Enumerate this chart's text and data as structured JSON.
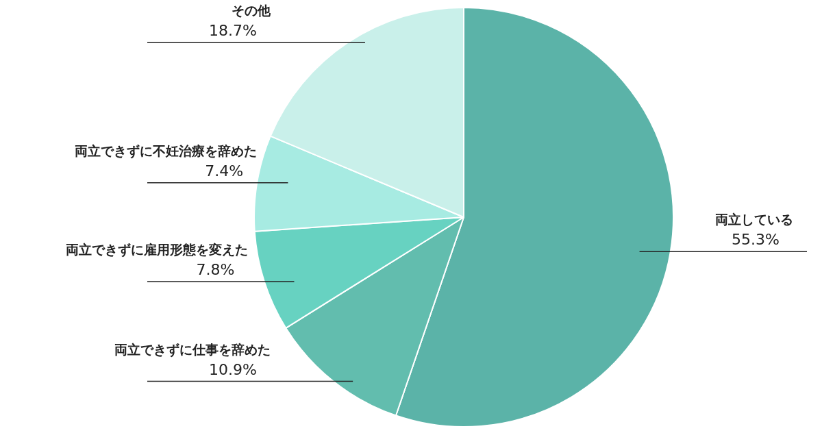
{
  "chart_data": {
    "type": "pie",
    "categories": [
      "両立している",
      "両立できずに仕事を辞めた",
      "両立できずに雇用形態を変えた",
      "両立できずに不妊治療を辞めた",
      "その他"
    ],
    "values": [
      55.3,
      10.9,
      7.8,
      7.4,
      18.7
    ],
    "value_labels": [
      "55.3%",
      "10.9%",
      "7.8%",
      "7.4%",
      "18.7%"
    ],
    "colors": [
      "#5bb3a8",
      "#62bdae",
      "#67d2c1",
      "#a7ebe2",
      "#c9f0ea"
    ],
    "legend": false
  }
}
